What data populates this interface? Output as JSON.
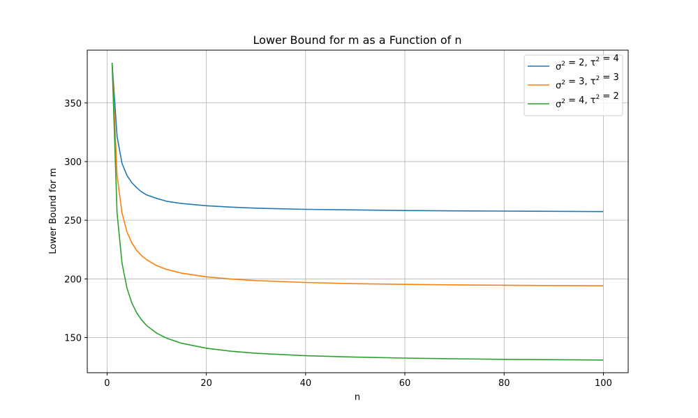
{
  "chart_data": {
    "type": "line",
    "title": "Lower Bound for m as a Function of n",
    "xlabel": "n",
    "ylabel": "Lower Bound for m",
    "xlim": [
      -4,
      105
    ],
    "ylim": [
      120,
      395
    ],
    "xticks": [
      0,
      20,
      40,
      60,
      80,
      100
    ],
    "yticks": [
      150,
      200,
      250,
      300,
      350
    ],
    "grid": true,
    "legend_position": "top-right",
    "series": [
      {
        "name_parts": {
          "sigma2": "2",
          "tau2": "4"
        },
        "color": "#1f77b4",
        "x": [
          1,
          2,
          3,
          4,
          5,
          6,
          7,
          8,
          10,
          12,
          15,
          20,
          25,
          30,
          40,
          50,
          60,
          70,
          80,
          90,
          100
        ],
        "values": [
          384.2,
          321.6,
          298.4,
          288.2,
          281.9,
          277.6,
          274.0,
          271.5,
          268.6,
          266.2,
          264.3,
          262.4,
          261.2,
          260.3,
          259.3,
          258.8,
          258.3,
          258.0,
          257.8,
          257.6,
          257.4
        ]
      },
      {
        "name_parts": {
          "sigma2": "3",
          "tau2": "3"
        },
        "color": "#ff7f0e",
        "x": [
          1,
          2,
          3,
          4,
          5,
          6,
          7,
          8,
          10,
          12,
          15,
          20,
          25,
          30,
          40,
          50,
          60,
          70,
          80,
          90,
          100
        ],
        "values": [
          384.2,
          288.2,
          256.2,
          240.1,
          230.5,
          224.1,
          219.6,
          216.2,
          211.3,
          208.1,
          204.9,
          201.7,
          199.8,
          198.5,
          196.9,
          195.9,
          195.3,
          194.9,
          194.6,
          194.3,
          194.1
        ]
      },
      {
        "name_parts": {
          "sigma2": "4",
          "tau2": "2"
        },
        "color": "#2ca02c",
        "x": [
          1,
          2,
          3,
          4,
          5,
          6,
          7,
          8,
          10,
          12,
          15,
          20,
          25,
          30,
          40,
          50,
          60,
          70,
          80,
          90,
          100
        ],
        "values": [
          384.2,
          256.2,
          213.5,
          192.1,
          179.3,
          170.8,
          164.7,
          160.1,
          153.7,
          149.4,
          145.1,
          140.9,
          138.3,
          136.6,
          134.5,
          133.3,
          132.5,
          131.9,
          131.4,
          131.1,
          130.8
        ]
      }
    ]
  }
}
